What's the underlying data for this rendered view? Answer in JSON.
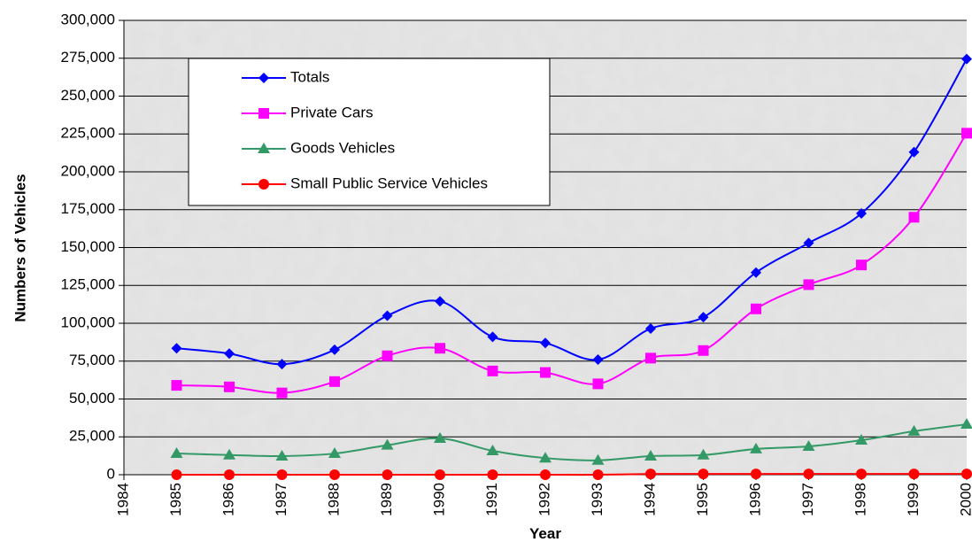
{
  "chart_data": {
    "type": "line",
    "x_label": "Year",
    "y_label": "Numbers of Vehicles",
    "x": [
      1985,
      1986,
      1987,
      1988,
      1989,
      1990,
      1991,
      1992,
      1993,
      1994,
      1995,
      1996,
      1997,
      1998,
      1999,
      2000
    ],
    "xlim": [
      1984,
      2000
    ],
    "xticks": [
      1984,
      1985,
      1986,
      1987,
      1988,
      1989,
      1990,
      1991,
      1992,
      1993,
      1994,
      1995,
      1996,
      1997,
      1998,
      1999,
      2000
    ],
    "ylim": [
      0,
      300000
    ],
    "yticks": [
      0,
      {
        "value": 25000,
        "label": "25,000"
      },
      {
        "value": 50000,
        "label": "50,000"
      },
      {
        "value": 75000,
        "label": "75,000"
      },
      {
        "value": 100000,
        "label": "100,000"
      },
      {
        "value": 125000,
        "label": "125,000"
      },
      {
        "value": 150000,
        "label": "150,000"
      },
      {
        "value": 175000,
        "label": "175,000"
      },
      {
        "value": 200000,
        "label": "200,000"
      },
      {
        "value": 225000,
        "label": "225,000"
      },
      {
        "value": 250000,
        "label": "250,000"
      },
      {
        "value": 275000,
        "label": "275,000"
      },
      {
        "value": 300000,
        "label": "300,000"
      }
    ],
    "grid": true,
    "series": [
      {
        "name": "Totals",
        "color": "#0000ff",
        "marker": "diamond",
        "values": [
          83500,
          80000,
          73000,
          82500,
          105000,
          114500,
          91000,
          87000,
          76000,
          96500,
          104000,
          133500,
          153000,
          172500,
          213000,
          274500
        ]
      },
      {
        "name": "Private Cars",
        "color": "#ff00ff",
        "marker": "square",
        "values": [
          59000,
          58000,
          54000,
          61500,
          78500,
          83500,
          68500,
          67500,
          60000,
          77000,
          82000,
          109500,
          125500,
          138500,
          170000,
          225500
        ]
      },
      {
        "name": "Goods Vehicles",
        "color": "#339966",
        "marker": "triangle",
        "values": [
          14000,
          13000,
          12300,
          14000,
          19500,
          24000,
          15800,
          11000,
          9500,
          12300,
          13000,
          17000,
          18700,
          22800,
          28700,
          33300
        ]
      },
      {
        "name": "Small Public Service Vehicles",
        "color": "#ff0000",
        "marker": "circle",
        "values": [
          0,
          0,
          0,
          0,
          0,
          0,
          0,
          0,
          0,
          500,
          500,
          500,
          500,
          500,
          500,
          500
        ]
      }
    ]
  }
}
